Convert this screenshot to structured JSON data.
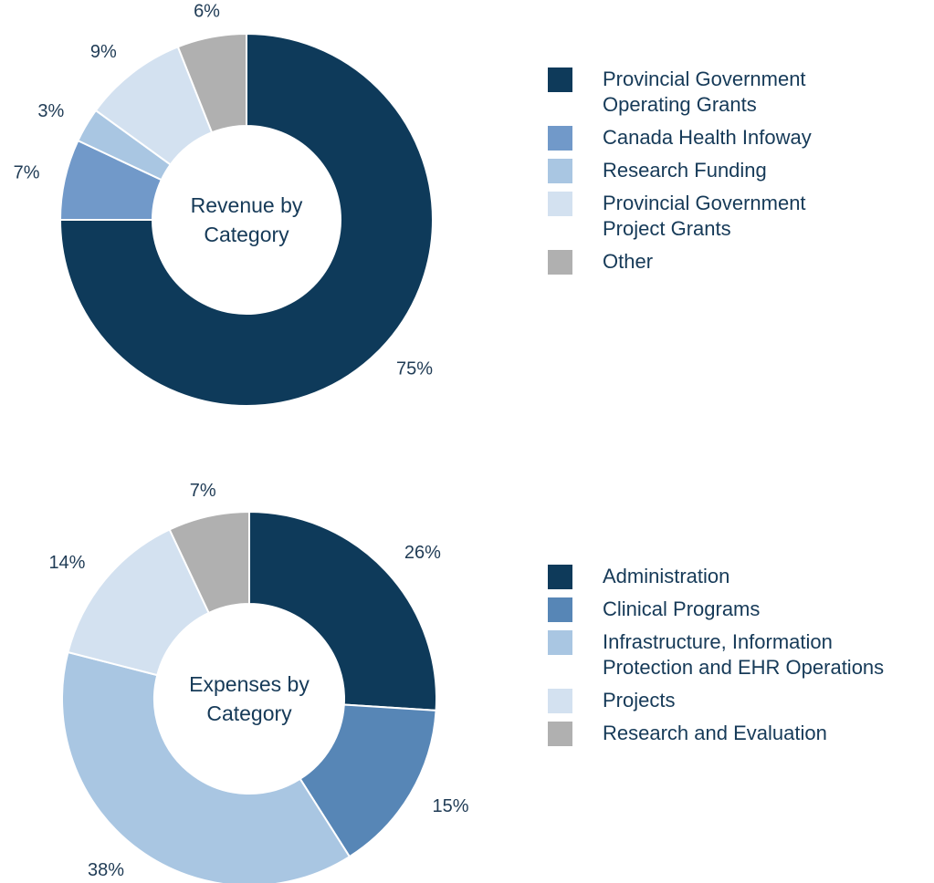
{
  "chart_data": [
    {
      "type": "donut",
      "title": "Revenue by Category",
      "categories": [
        "Provincial Government Operating Grants",
        "Canada Health Infoway",
        "Research Funding",
        "Provincial Government Project Grants",
        "Other"
      ],
      "values": [
        75,
        7,
        3,
        9,
        6
      ],
      "value_labels": [
        "75%",
        "7%",
        "3%",
        "9%",
        "6%"
      ],
      "colors": [
        "#0e3a5a",
        "#7199c9",
        "#a9c6e2",
        "#d3e1f0",
        "#b0b0b0"
      ]
    },
    {
      "type": "donut",
      "title": "Expenses by Category",
      "categories": [
        "Administration",
        "Clinical Programs",
        "Infrastructure, Information Protection and EHR Operations",
        "Projects",
        "Research and Evaluation"
      ],
      "values": [
        26,
        15,
        38,
        14,
        7
      ],
      "value_labels": [
        "26%",
        "15%",
        "38%",
        "14%",
        "7%"
      ],
      "colors": [
        "#0e3a5a",
        "#5786b6",
        "#a9c6e2",
        "#d3e1f0",
        "#b0b0b0"
      ]
    }
  ]
}
